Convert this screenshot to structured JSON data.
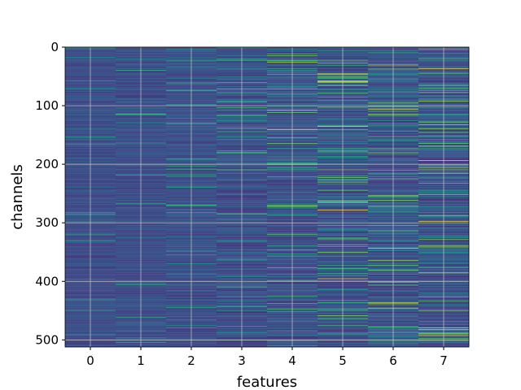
{
  "chart_data": {
    "type": "heatmap",
    "title": "",
    "xlabel": "features",
    "ylabel": "channels",
    "x_ticks": [
      "0",
      "1",
      "2",
      "3",
      "4",
      "5",
      "6",
      "7"
    ],
    "y_ticks": [
      "0",
      "100",
      "200",
      "300",
      "400",
      "500"
    ],
    "n_features": 8,
    "n_channels": 512,
    "ylim": [
      512,
      0
    ],
    "y_inverted": true,
    "grid": true,
    "colormap": "viridis",
    "feature_intensity_scale": [
      0.1,
      0.12,
      0.18,
      0.3,
      0.4,
      0.48,
      0.5,
      0.55
    ],
    "notable_bright_rows": {
      "4": [
        25,
        107,
        140,
        270
      ],
      "5": [
        45,
        58,
        135,
        262,
        265,
        278,
        395
      ],
      "6": [
        30,
        106,
        343,
        436
      ],
      "7": [
        36,
        92,
        193,
        297,
        385,
        482,
        492
      ]
    },
    "colors": {
      "low": "#3b528b",
      "mid": "#21918c",
      "high": "#5ec962",
      "max": "#fde725",
      "grid": "#c8c8c8"
    }
  }
}
